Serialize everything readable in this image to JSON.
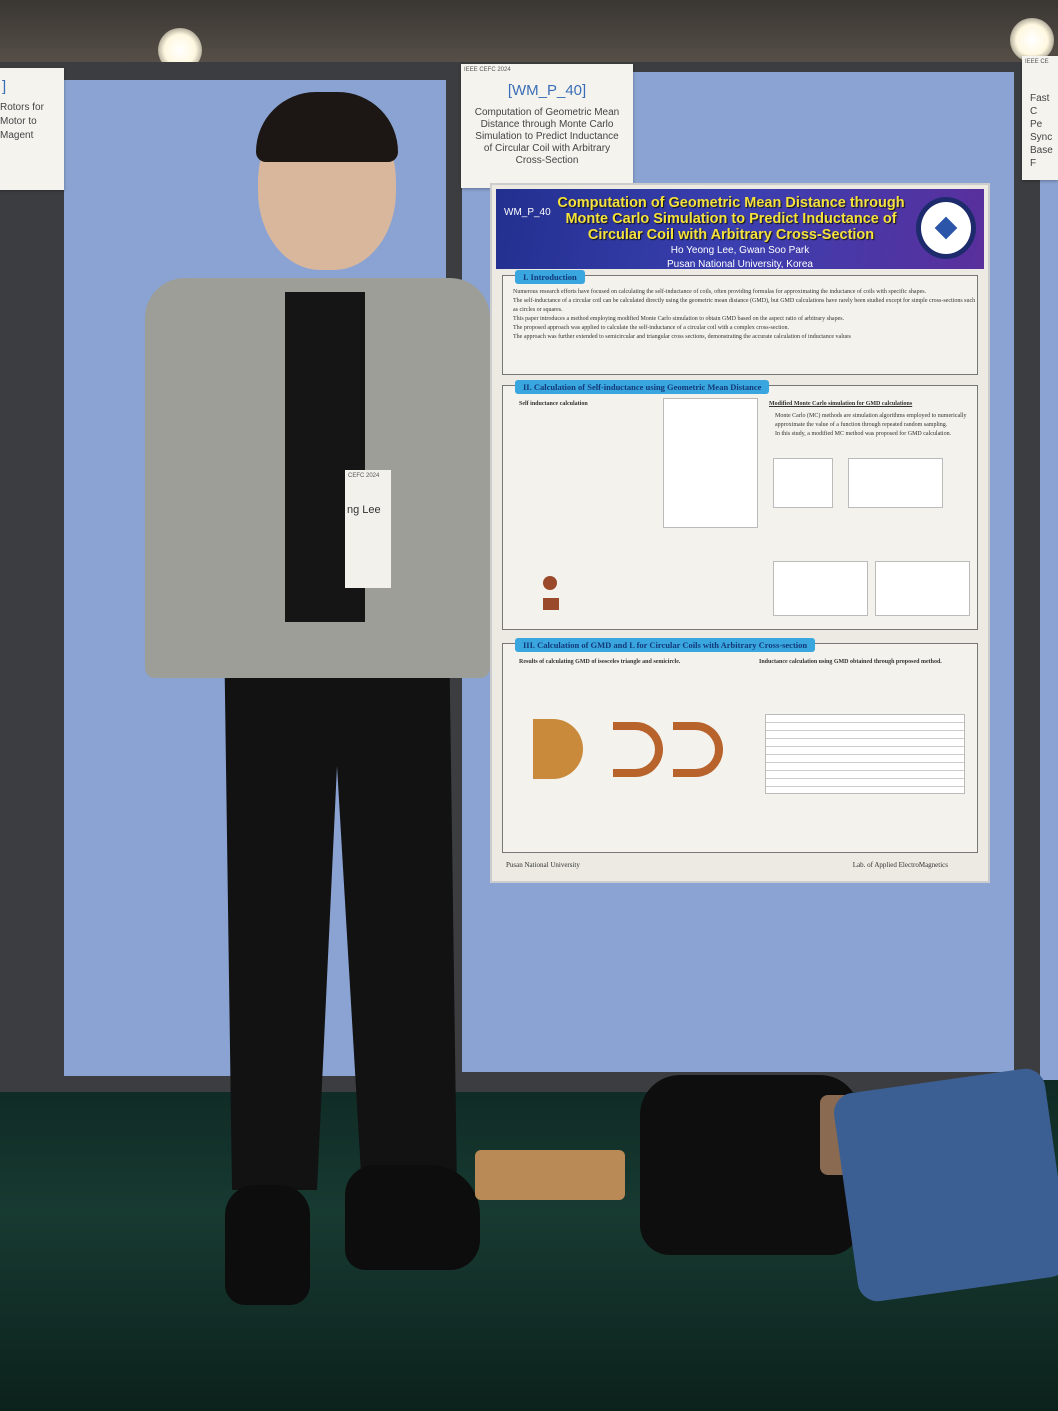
{
  "scene": "poster-session",
  "left_label": {
    "code": "]",
    "title_lines": [
      "Rotors for",
      "Motor to",
      "Magent"
    ]
  },
  "center_label": {
    "header": "IEEE CEFC 2024",
    "code": "[WM_P_40]",
    "title": "Computation of Geometric Mean Distance through Monte Carlo Simulation to Predict Inductance of Circular Coil with Arbitrary Cross-Section"
  },
  "right_label": {
    "header": "IEEE CE",
    "title_lines": [
      "Fast C",
      "Pe",
      "Sync",
      "Base",
      "F"
    ]
  },
  "poster": {
    "code": "WM_P_40",
    "title": "Computation of Geometric Mean Distance through Monte Carlo Simulation to Predict Inductance of Circular Coil with Arbitrary Cross-Section",
    "authors": "Ho Yeong Lee, Gwan Soo Park",
    "affiliation": "Pusan National University, Korea",
    "sections": [
      {
        "title": "I. Introduction",
        "bullets": [
          "Numerous research efforts have focused on calculating the self-inductance of coils, often providing formulas for approximating the inductance of coils with specific shapes.",
          "The self-inductance of a circular coil can be calculated directly using the geometric mean distance (GMD), but GMD calculations have rarely been studied except for simple cross-sections such as circles or squares.",
          "This paper introduces a method employing modified Monte Carlo simulation to obtain GMD based on the aspect ratio of arbitrary shapes.",
          "The proposed approach was applied to calculate the self-inductance of a circular coil with a complex cross-section.",
          "The approach was further extended to semicircular and triangular cross sections, demonstrating the accurate calculation of inductance values"
        ]
      },
      {
        "title": "II. Calculation of Self-inductance using Geometric Mean Distance",
        "left_heading": "Self inductance calculation",
        "right_heading": "Modified Monte Carlo simulation for GMD calculations",
        "bullets": [
          "Monte Carlo (MC) methods are simulation algorithms employed to numerically approximate the value of a function through repeated random sampling.",
          "In this study, a modified MC method was proposed for GMD calculation."
        ]
      },
      {
        "title": "III. Calculation of GMD and L for Circular Coils with Arbitrary Cross-section",
        "left_heading": "Results of calculating GMD of isosceles triangle and semicircle.",
        "right_heading": "Inductance calculation using GMD obtained through proposed method."
      }
    ],
    "footer_left": "Pusan National University",
    "footer_right": "Lab. of Applied ElectroMagnetics"
  },
  "badge": {
    "header": "CEFC 2024",
    "name": "ng Lee"
  },
  "colors": {
    "board": "#8aa3d2",
    "banner": "#2f37a0",
    "title_yellow": "#f5e23c",
    "section_tab": "#3aa6e0",
    "floor": "#173a31"
  }
}
